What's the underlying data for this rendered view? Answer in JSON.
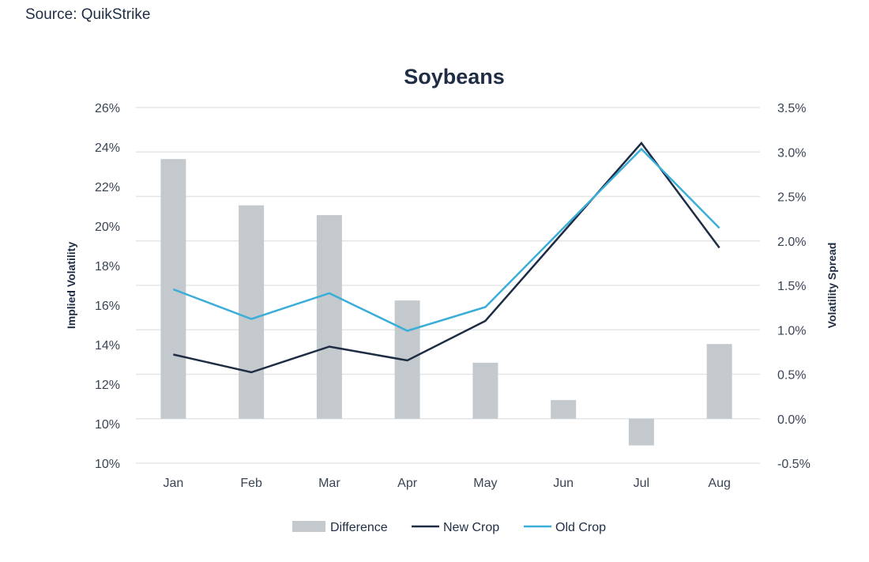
{
  "source": "Source: QuikStrike",
  "chart_data": {
    "type": "bar+line",
    "title": "Soybeans",
    "categories": [
      "Jan",
      "Feb",
      "Mar",
      "Apr",
      "May",
      "Jun",
      "Jul",
      "Aug"
    ],
    "left_axis": {
      "label": "Implied Volatility",
      "tick_labels": [
        "26%",
        "24%",
        "22%",
        "20%",
        "18%",
        "16%",
        "14%",
        "12%",
        "10%",
        "10%"
      ],
      "ylim": [
        8,
        26
      ]
    },
    "right_axis": {
      "label": "Volatility Spread",
      "tick_labels": [
        "3.5%",
        "3.0%",
        "2.5%",
        "2.0%",
        "1.5%",
        "1.0%",
        "0.5%",
        "0.0%",
        "-0.5%"
      ],
      "ylim": [
        -0.5,
        3.5
      ]
    },
    "grid": true,
    "legend_position": "bottom",
    "series": [
      {
        "name": "Difference",
        "type": "bar",
        "axis": "right",
        "color": "#c3c9cd",
        "values": [
          2.92,
          2.4,
          2.29,
          1.33,
          0.63,
          0.21,
          -0.3,
          0.84
        ]
      },
      {
        "name": "New Crop",
        "type": "line",
        "axis": "left",
        "color": "#1f2d44",
        "values": [
          13.5,
          12.6,
          13.9,
          13.2,
          15.2,
          19.7,
          24.2,
          18.9
        ]
      },
      {
        "name": "Old Crop",
        "type": "line",
        "axis": "left",
        "color": "#3aaed8",
        "values": [
          16.8,
          15.3,
          16.6,
          14.7,
          15.9,
          19.9,
          23.9,
          19.9
        ]
      }
    ]
  }
}
